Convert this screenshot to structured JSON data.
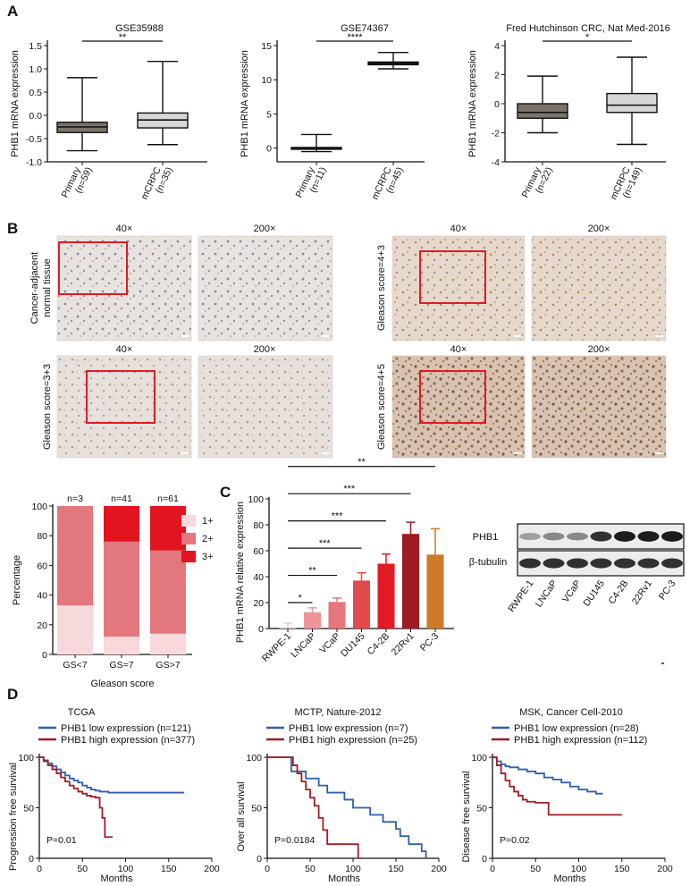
{
  "figure": {
    "panels": {
      "A": "A",
      "B": "B",
      "C": "C",
      "D": "D"
    }
  },
  "chart_data": [
    {
      "id": "A1",
      "type": "box",
      "title": "GSE35988",
      "ylabel": "PHB1 mRNA expression",
      "yticks": [
        "-1.0",
        "-0.5",
        "0.0",
        "0.5",
        "1.0",
        "1.5"
      ],
      "ylim": [
        -1.0,
        1.5
      ],
      "significance": "**",
      "groups": [
        {
          "label1": "Primary",
          "label2": "(n=59)",
          "min": -0.76,
          "q1": -0.37,
          "median": -0.25,
          "q3": -0.15,
          "max": 0.81,
          "color": "#7a736a"
        },
        {
          "label1": "mCRPC",
          "label2": "(n=35)",
          "min": -0.63,
          "q1": -0.27,
          "median": -0.1,
          "q3": 0.05,
          "max": 1.16,
          "color": "#d6d6d6"
        }
      ]
    },
    {
      "id": "A2",
      "type": "box",
      "title": "GSE74367",
      "ylabel": "PHB1 mRNA expression",
      "yticks": [
        "0",
        "5",
        "10",
        "15"
      ],
      "ylim": [
        -2,
        15
      ],
      "significance": "****",
      "groups": [
        {
          "label1": "Primary",
          "label2": "(n=11)",
          "min": -0.5,
          "q1": -0.1,
          "median": 0.0,
          "q3": 0.1,
          "max": 2.0,
          "color": "#7a736a"
        },
        {
          "label1": "mCRPC",
          "label2": "(n=45)",
          "min": 11.6,
          "q1": 12.2,
          "median": 12.4,
          "q3": 12.6,
          "max": 14.0,
          "color": "#222222"
        }
      ]
    },
    {
      "id": "A3",
      "type": "box",
      "title": "Fred Hutchinson CRC, Nat Med-2016",
      "ylabel": "PHB1 mRNA expression",
      "yticks": [
        "-4",
        "-2",
        "0",
        "2",
        "4"
      ],
      "ylim": [
        -4,
        4
      ],
      "significance": "*",
      "groups": [
        {
          "label1": "Primary",
          "label2": "(n=22)",
          "min": -2.0,
          "q1": -1.0,
          "median": -0.6,
          "q3": 0.0,
          "max": 1.9,
          "color": "#7a736a"
        },
        {
          "label1": "mCRPC",
          "label2": "(n=149)",
          "min": -2.8,
          "q1": -0.6,
          "median": -0.1,
          "q3": 0.7,
          "max": 3.2,
          "color": "#d6d6d6"
        }
      ]
    },
    {
      "id": "B-bar",
      "type": "stacked-bar",
      "ylabel": "Percentage",
      "xlabel": "Gleason score",
      "yticks": [
        "0",
        "20",
        "40",
        "60",
        "80",
        "100"
      ],
      "ylim": [
        0,
        100
      ],
      "categories": [
        "GS<7",
        "GS=7",
        "GS>7"
      ],
      "counts": [
        "n=3",
        "n=41",
        "n=61"
      ],
      "series": [
        {
          "name": "1+",
          "values": [
            33,
            12,
            14
          ],
          "color": "#f8d9db"
        },
        {
          "name": "2+",
          "values": [
            67,
            64,
            56
          ],
          "color": "#e2777e"
        },
        {
          "name": "3+",
          "values": [
            0,
            24,
            30
          ],
          "color": "#e2141f"
        }
      ]
    },
    {
      "id": "C",
      "type": "bar",
      "ylabel": "PHB1 mRNA relative expression",
      "yticks": [
        "0",
        "20",
        "40",
        "60",
        "80",
        "100"
      ],
      "ylim": [
        0,
        100
      ],
      "categories": [
        "RWPE-1",
        "LNCaP",
        "VCaP",
        "DU145",
        "C4-2B",
        "22Rv1",
        "PC-3"
      ],
      "values": [
        1.0,
        12.5,
        20.5,
        37.0,
        50.0,
        73.0,
        57.0
      ],
      "errors": [
        3.0,
        3.5,
        3.0,
        6.0,
        7.5,
        9.0,
        20.0
      ],
      "colors": [
        "#f6c9cb",
        "#ed9598",
        "#e6767b",
        "#e14a4f",
        "#e21a23",
        "#9e1c22",
        "#cc7a28"
      ],
      "comparisons": [
        {
          "from": 0,
          "to": 1,
          "label": "*",
          "y": 20
        },
        {
          "from": 0,
          "to": 2,
          "label": "**",
          "y": 41
        },
        {
          "from": 0,
          "to": 3,
          "label": "***",
          "y": 62
        },
        {
          "from": 0,
          "to": 4,
          "label": "***",
          "y": 83
        },
        {
          "from": 0,
          "to": 5,
          "label": "***",
          "y": 104
        },
        {
          "from": 0,
          "to": 6,
          "label": "**",
          "y": 125
        }
      ]
    },
    {
      "id": "D1",
      "type": "line",
      "title": "TCGA",
      "ylabel": "Progression free survival",
      "xlabel": "Months",
      "pvalue": "P=0.01",
      "xticks": [
        "0",
        "50",
        "100",
        "150",
        "200"
      ],
      "yticks": [
        "0",
        "50",
        "100"
      ],
      "xlim": [
        0,
        200
      ],
      "ylim": [
        0,
        100
      ],
      "series": [
        {
          "name": "PHB1 low expression (n=121)",
          "color": "#2f5faf",
          "x": [
            0,
            5,
            10,
            15,
            20,
            25,
            30,
            35,
            40,
            45,
            50,
            55,
            60,
            65,
            70,
            80,
            90,
            100,
            110,
            130,
            150,
            168
          ],
          "y": [
            100,
            97,
            94,
            91,
            88,
            85,
            82,
            79,
            77,
            75,
            72,
            70,
            68,
            67,
            66,
            65,
            65,
            65,
            65,
            65,
            65,
            65
          ]
        },
        {
          "name": "PHB1 high expression (n=377)",
          "color": "#a31d22",
          "x": [
            0,
            5,
            10,
            15,
            20,
            25,
            30,
            35,
            40,
            45,
            50,
            55,
            60,
            65,
            70,
            73,
            76,
            80,
            85
          ],
          "y": [
            100,
            96,
            92,
            88,
            84,
            80,
            76,
            72,
            69,
            66,
            64,
            62,
            61,
            60,
            50,
            40,
            21,
            21,
            21
          ]
        }
      ]
    },
    {
      "id": "D2",
      "type": "line",
      "title": "MCTP, Nature-2012",
      "ylabel": "Over all survival",
      "xlabel": "Months",
      "pvalue": "P=0.0184",
      "xticks": [
        "0",
        "50",
        "100",
        "150",
        "200"
      ],
      "yticks": [
        "0",
        "50",
        "100"
      ],
      "xlim": [
        0,
        200
      ],
      "ylim": [
        0,
        100
      ],
      "series": [
        {
          "name": "PHB1 low expression (n=7)",
          "color": "#2f5faf",
          "x": [
            0,
            20,
            28,
            38,
            45,
            60,
            70,
            90,
            100,
            120,
            135,
            150,
            155,
            165,
            180,
            185
          ],
          "y": [
            100,
            100,
            86,
            86,
            79,
            72,
            65,
            58,
            50,
            43,
            36,
            29,
            22,
            14,
            7,
            0
          ]
        },
        {
          "name": "PHB1 high expression (n=25)",
          "color": "#a31d22",
          "x": [
            0,
            25,
            30,
            35,
            40,
            45,
            50,
            55,
            60,
            65,
            70,
            80,
            95,
            105,
            106
          ],
          "y": [
            100,
            100,
            92,
            84,
            76,
            68,
            60,
            52,
            40,
            28,
            14,
            14,
            14,
            14,
            0
          ]
        }
      ]
    },
    {
      "id": "D3",
      "type": "line",
      "title": "MSK, Cancer Cell-2010",
      "ylabel": "Disease free survival",
      "xlabel": "Months",
      "pvalue": "P=0.02",
      "xticks": [
        "0",
        "50",
        "100",
        "150",
        "200"
      ],
      "yticks": [
        "0",
        "50",
        "100"
      ],
      "xlim": [
        0,
        200
      ],
      "ylim": [
        0,
        100
      ],
      "series": [
        {
          "name": "PHB1 low expression (n=28)",
          "color": "#2f5faf",
          "x": [
            0,
            5,
            10,
            15,
            20,
            30,
            40,
            50,
            60,
            70,
            80,
            90,
            100,
            110,
            120,
            128
          ],
          "y": [
            100,
            96,
            93,
            91,
            90,
            88,
            86,
            84,
            80,
            78,
            75,
            71,
            68,
            66,
            64,
            64
          ]
        },
        {
          "name": "PHB1 high expression (n=112)",
          "color": "#a31d22",
          "x": [
            0,
            5,
            10,
            15,
            20,
            25,
            30,
            35,
            40,
            50,
            60,
            65,
            70,
            100,
            150
          ],
          "y": [
            100,
            92,
            84,
            77,
            71,
            66,
            62,
            58,
            56,
            55,
            55,
            43,
            43,
            43,
            43
          ]
        }
      ]
    }
  ],
  "histology": {
    "magnifications": [
      "40×",
      "200×"
    ],
    "rows": [
      {
        "label1": "Cancer-adjacent",
        "label2": "normal tissue"
      },
      {
        "label1": "Gleason score=4+3",
        "label2": ""
      },
      {
        "label1": "Gleason score=3+3",
        "label2": ""
      },
      {
        "label1": "Gleason score=4+5",
        "label2": ""
      }
    ]
  },
  "blot": {
    "rows": [
      "PHB1",
      "β-tubulin"
    ],
    "lanes": [
      "RWPE-1",
      "LNCaP",
      "VCaP",
      "DU145",
      "C4-2B",
      "22Rv1",
      "PC-3"
    ]
  }
}
